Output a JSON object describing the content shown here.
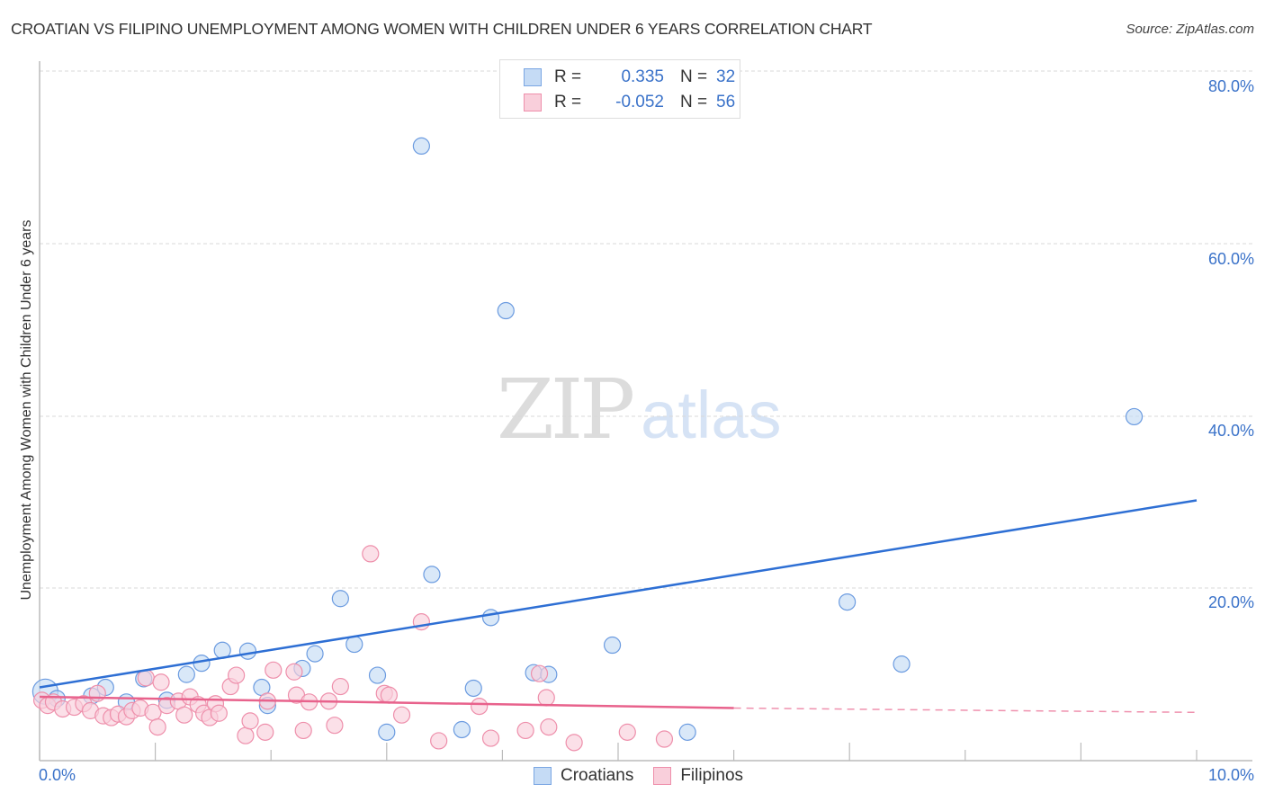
{
  "header": {
    "title": "CROATIAN VS FILIPINO UNEMPLOYMENT AMONG WOMEN WITH CHILDREN UNDER 6 YEARS CORRELATION CHART",
    "source": "Source: ZipAtlas.com"
  },
  "watermark": {
    "zip": "ZIP",
    "atlas": "atlas"
  },
  "axes": {
    "ylabel": "Unemployment Among Women with Children Under 6 years",
    "yticks": [
      "80.0%",
      "60.0%",
      "40.0%",
      "20.0%"
    ],
    "xticks": {
      "left": "0.0%",
      "right": "10.0%"
    }
  },
  "legend": {
    "rows": [
      {
        "r_label": "R =",
        "r_value": "0.335",
        "n_label": "N =",
        "n_value": "32",
        "color": "#a9c8f0"
      },
      {
        "r_label": "R =",
        "r_value": "-0.052",
        "n_label": "N =",
        "n_value": "56",
        "color": "#f6b6c9"
      }
    ]
  },
  "series_legend": [
    {
      "name": "Croatians",
      "color": "#a9c8f0"
    },
    {
      "name": "Filipinos",
      "color": "#f6b6c9"
    }
  ],
  "colors": {
    "croatian_fill": "#c5dbf5",
    "croatian_stroke": "#6b9be0",
    "croatian_line": "#2e6fd4",
    "filipino_fill": "#f9cfdb",
    "filipino_stroke": "#ee8fab",
    "filipino_line": "#e8628c",
    "grid": "#d9d9d9",
    "tick_text": "#3a72c9"
  },
  "chart_data": {
    "type": "scatter",
    "title": "CROATIAN VS FILIPINO UNEMPLOYMENT AMONG WOMEN WITH CHILDREN UNDER 6 YEARS CORRELATION CHART",
    "xlabel": "",
    "ylabel": "Unemployment Among Women with Children Under 6 years",
    "xlim": [
      0,
      10
    ],
    "ylim": [
      0,
      80
    ],
    "x_unit": "%",
    "y_unit": "%",
    "grid": true,
    "legend_position": "bottom-center",
    "series": [
      {
        "name": "Croatians",
        "R": 0.335,
        "N": 32,
        "trend": {
          "x": [
            0,
            10
          ],
          "y": [
            8.5,
            30.2
          ]
        },
        "points": [
          [
            0.05,
            8.0
          ],
          [
            0.15,
            7.2
          ],
          [
            0.45,
            7.5
          ],
          [
            0.57,
            8.5
          ],
          [
            0.75,
            6.8
          ],
          [
            0.9,
            9.5
          ],
          [
            1.1,
            7.0
          ],
          [
            1.27,
            10.0
          ],
          [
            1.4,
            11.3
          ],
          [
            1.58,
            12.8
          ],
          [
            1.8,
            12.7
          ],
          [
            1.92,
            8.5
          ],
          [
            1.97,
            6.4
          ],
          [
            2.27,
            10.7
          ],
          [
            2.38,
            12.4
          ],
          [
            2.6,
            18.8
          ],
          [
            2.72,
            13.5
          ],
          [
            2.92,
            9.9
          ],
          [
            3.0,
            3.3
          ],
          [
            3.3,
            71.3
          ],
          [
            3.39,
            21.6
          ],
          [
            3.65,
            3.6
          ],
          [
            3.75,
            8.4
          ],
          [
            3.9,
            16.6
          ],
          [
            4.03,
            52.2
          ],
          [
            4.27,
            10.2
          ],
          [
            4.4,
            10.0
          ],
          [
            4.95,
            13.4
          ],
          [
            5.6,
            3.3
          ],
          [
            6.98,
            18.4
          ],
          [
            7.45,
            11.2
          ],
          [
            9.46,
            39.9
          ]
        ]
      },
      {
        "name": "Filipinos",
        "R": -0.052,
        "N": 56,
        "trend": {
          "x": [
            0,
            6,
            10
          ],
          "y": [
            7.4,
            6.1,
            5.6
          ],
          "solid_until": 6
        },
        "points": [
          [
            0.02,
            7.0
          ],
          [
            0.07,
            6.4
          ],
          [
            0.12,
            6.8
          ],
          [
            0.2,
            6.0
          ],
          [
            0.3,
            6.2
          ],
          [
            0.38,
            6.6
          ],
          [
            0.44,
            5.8
          ],
          [
            0.5,
            7.8
          ],
          [
            0.55,
            5.2
          ],
          [
            0.62,
            5.0
          ],
          [
            0.68,
            5.4
          ],
          [
            0.75,
            5.1
          ],
          [
            0.8,
            5.8
          ],
          [
            0.87,
            6.1
          ],
          [
            0.92,
            9.6
          ],
          [
            0.98,
            5.6
          ],
          [
            1.02,
            3.9
          ],
          [
            1.05,
            9.1
          ],
          [
            1.1,
            6.4
          ],
          [
            1.2,
            6.9
          ],
          [
            1.25,
            5.3
          ],
          [
            1.3,
            7.4
          ],
          [
            1.37,
            6.5
          ],
          [
            1.42,
            5.5
          ],
          [
            1.47,
            5.0
          ],
          [
            1.52,
            6.6
          ],
          [
            1.55,
            5.5
          ],
          [
            1.65,
            8.6
          ],
          [
            1.7,
            9.9
          ],
          [
            1.78,
            2.9
          ],
          [
            1.82,
            4.6
          ],
          [
            1.95,
            3.3
          ],
          [
            1.97,
            6.9
          ],
          [
            2.02,
            10.5
          ],
          [
            2.2,
            10.3
          ],
          [
            2.22,
            7.6
          ],
          [
            2.28,
            3.5
          ],
          [
            2.33,
            6.8
          ],
          [
            2.5,
            6.9
          ],
          [
            2.55,
            4.1
          ],
          [
            2.6,
            8.6
          ],
          [
            2.86,
            24.0
          ],
          [
            2.98,
            7.8
          ],
          [
            3.02,
            7.6
          ],
          [
            3.13,
            5.3
          ],
          [
            3.3,
            16.1
          ],
          [
            3.45,
            2.3
          ],
          [
            3.8,
            6.3
          ],
          [
            3.9,
            2.6
          ],
          [
            4.2,
            3.5
          ],
          [
            4.32,
            10.1
          ],
          [
            4.38,
            7.3
          ],
          [
            4.4,
            3.9
          ],
          [
            4.62,
            2.1
          ],
          [
            5.08,
            3.3
          ],
          [
            5.4,
            2.5
          ]
        ]
      }
    ]
  }
}
